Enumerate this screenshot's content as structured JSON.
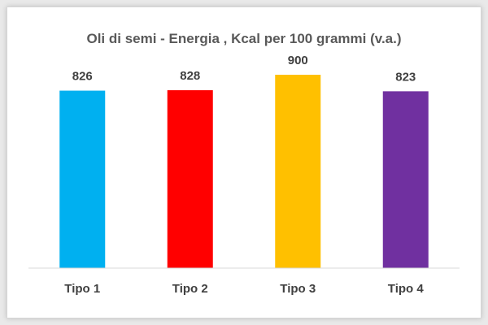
{
  "chart_data": {
    "type": "bar",
    "title": "Oli di semi - Energia , Kcal per 100 grammi (v.a.)",
    "categories": [
      "Tipo 1",
      "Tipo 2",
      "Tipo 3",
      "Tipo 4"
    ],
    "values": [
      826,
      828,
      900,
      823
    ],
    "colors": [
      "#00b0f0",
      "#ff0000",
      "#ffc000",
      "#7030a0"
    ],
    "data_labels": [
      "826",
      "828",
      "900",
      "823"
    ],
    "ylim": [
      0,
      1000
    ],
    "grid": false,
    "legend": "none",
    "xlabel": "",
    "ylabel": ""
  }
}
